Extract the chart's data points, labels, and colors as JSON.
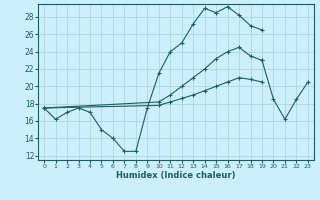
{
  "xlabel": "Humidex (Indice chaleur)",
  "bg_color": "#cceeff",
  "line_color": "#1a6060",
  "xlim": [
    -0.5,
    23.5
  ],
  "ylim": [
    11.5,
    29.5
  ],
  "xticks": [
    0,
    1,
    2,
    3,
    4,
    5,
    6,
    7,
    8,
    9,
    10,
    11,
    12,
    13,
    14,
    15,
    16,
    17,
    18,
    19,
    20,
    21,
    22,
    23
  ],
  "yticks": [
    12,
    14,
    16,
    18,
    20,
    22,
    24,
    26,
    28
  ],
  "grid_color": "#aad4cc",
  "series": [
    {
      "x": [
        0,
        1,
        2,
        3,
        4,
        5,
        6,
        7,
        8,
        9,
        10,
        11,
        12,
        13,
        14,
        15,
        16,
        17,
        18,
        19
      ],
      "y": [
        17.5,
        16.2,
        17.0,
        17.5,
        17.0,
        15.0,
        14.0,
        12.5,
        12.5,
        17.5,
        21.5,
        24.0,
        25.0,
        27.2,
        29.0,
        28.5,
        29.2,
        28.2,
        27.0,
        26.5
      ]
    },
    {
      "x": [
        0,
        10,
        11,
        12,
        13,
        14,
        15,
        16,
        17,
        18,
        19
      ],
      "y": [
        17.5,
        18.2,
        19.0,
        20.0,
        21.0,
        22.0,
        23.2,
        24.0,
        24.5,
        23.5,
        23.0
      ]
    },
    {
      "x": [
        0,
        10,
        11,
        12,
        13,
        14,
        15,
        16,
        17,
        18,
        19
      ],
      "y": [
        17.5,
        17.8,
        18.2,
        18.6,
        19.0,
        19.5,
        20.0,
        20.5,
        21.0,
        20.8,
        20.5
      ]
    },
    {
      "x": [
        19,
        20,
        21,
        22,
        23
      ],
      "y": [
        23.0,
        18.5,
        16.2,
        18.5,
        20.5
      ]
    }
  ]
}
